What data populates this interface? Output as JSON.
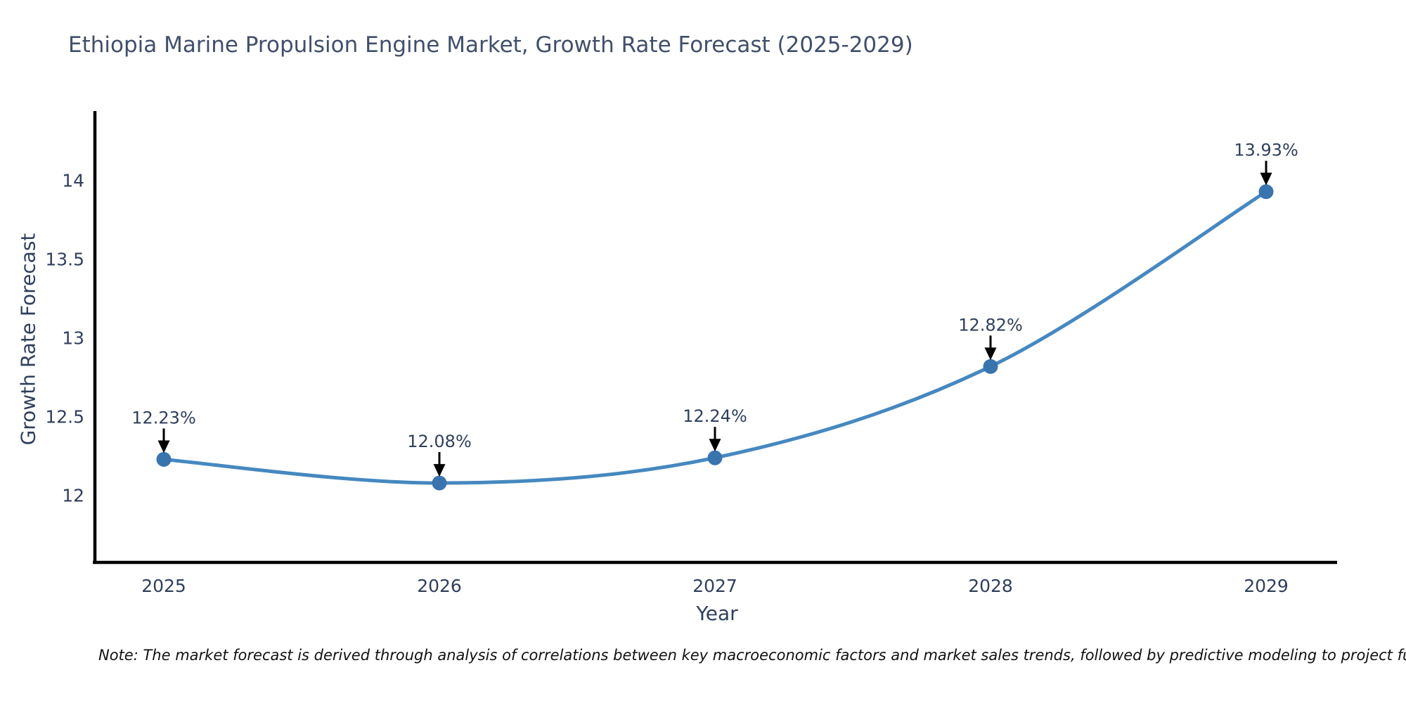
{
  "title": "Ethiopia Marine Propulsion Engine Market, Growth Rate Forecast (2025-2029)",
  "note": "Note: The market forecast is derived through analysis of correlations between key macroeconomic factors and market sales trends, followed by predictive modeling to project future sales",
  "chart_data": {
    "type": "line",
    "title": "Ethiopia Marine Propulsion Engine Market, Growth Rate Forecast (2025-2029)",
    "xlabel": "Year",
    "ylabel": "Growth Rate Forecast",
    "x": [
      2025,
      2026,
      2027,
      2028,
      2029
    ],
    "xtick_labels": [
      "2025",
      "2026",
      "2027",
      "2028",
      "2029"
    ],
    "series": [
      {
        "name": "Growth Rate Forecast",
        "values": [
          12.23,
          12.08,
          12.24,
          12.82,
          13.93
        ]
      }
    ],
    "point_labels": [
      "12.23%",
      "12.08%",
      "12.24%",
      "12.82%",
      "13.93%"
    ],
    "yticks": [
      12,
      12.5,
      13,
      13.5,
      14
    ],
    "ytick_labels": [
      "12",
      "12.5",
      "13",
      "13.5",
      "14"
    ],
    "ylim": [
      11.57,
      14.43
    ],
    "grid": false,
    "legend": "none",
    "line_shape": "spline",
    "colors": {
      "line": "#4688c0",
      "marker": "#3a74af",
      "arrow": "#000000",
      "axis": "#000000",
      "tick_text": "#2f3f5c",
      "annotation_text": "#2f3f5c",
      "title_text": "#404f6b"
    }
  }
}
